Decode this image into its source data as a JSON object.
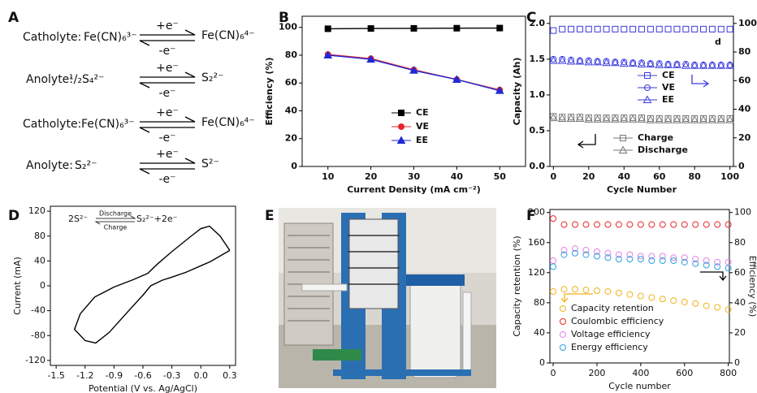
{
  "panel_labels": [
    "A",
    "B",
    "C",
    "D",
    "E",
    "F"
  ],
  "reactions": [
    {
      "label": "Catholyte:",
      "left": "Fe(CN)₆³⁻",
      "forward": "+e⁻",
      "backward": "-e⁻",
      "right": "Fe(CN)₆⁴⁻"
    },
    {
      "label": "Anolyte:",
      "left": "¹/₂S₄²⁻",
      "forward": "+e⁻",
      "backward": "-e⁻",
      "right": "S₂²⁻"
    },
    {
      "label": "Catholyte:",
      "left": "Fe(CN)₆³⁻",
      "forward": "+e⁻",
      "backward": "-e⁻",
      "right": "Fe(CN)₆⁴⁻"
    },
    {
      "label": "Anolyte:",
      "left": "S₂²⁻",
      "forward": "+e⁻",
      "backward": "-e⁻",
      "right": "S²⁻"
    }
  ],
  "chart_data": [
    {
      "type": "line",
      "xlabel": "Current Density (mA cm⁻²)",
      "ylabel": "Efficiency (%)",
      "x": [
        10,
        20,
        30,
        40,
        50
      ],
      "xlim": [
        4,
        56
      ],
      "xticks": [
        10,
        20,
        30,
        40,
        50
      ],
      "ylim": [
        0,
        108
      ],
      "yticks": [
        0,
        20,
        40,
        60,
        80,
        100
      ],
      "legend": "lower right",
      "series": [
        {
          "name": "CE",
          "color": "#000000",
          "marker": "square",
          "filled": true,
          "values": [
            99,
            99.2,
            99.3,
            99.4,
            99.5
          ]
        },
        {
          "name": "VE",
          "color": "#e8262b",
          "marker": "circle",
          "filled": true,
          "values": [
            80.5,
            77.5,
            69.5,
            62.5,
            55
          ]
        },
        {
          "name": "EE",
          "color": "#1f2ad6",
          "marker": "triangle",
          "filled": true,
          "values": [
            80,
            77,
            69,
            62.5,
            54.5
          ]
        }
      ]
    },
    {
      "type": "scatter",
      "xlabel": "Cycle Number",
      "ylabel": "Capacity (Ah)",
      "annotation": "d",
      "x": [
        0,
        5,
        10,
        15,
        20,
        25,
        30,
        35,
        40,
        45,
        50,
        55,
        60,
        65,
        70,
        75,
        80,
        85,
        90,
        95,
        100
      ],
      "xlim": [
        -2,
        102
      ],
      "xticks": [
        0,
        20,
        40,
        60,
        80,
        100
      ],
      "ylim": [
        0,
        2.1
      ],
      "yticks": [
        {
          "value": 0,
          "label": "0.0"
        },
        0.5,
        {
          "value": 1,
          "label": "1.0"
        },
        1.5,
        {
          "value": 2,
          "label": "2.0"
        }
      ],
      "y2lim": [
        0,
        105
      ],
      "y2ticks": [
        0,
        20,
        40,
        60,
        80,
        100
      ],
      "legend": "center",
      "series": [
        {
          "name": "CE",
          "color": "#3a3ae0",
          "marker": "square",
          "filled": false,
          "axis": "y2",
          "values": [
            95,
            96,
            96,
            96,
            96,
            96,
            96,
            96,
            96,
            96,
            96,
            96,
            96,
            96,
            96,
            96,
            96,
            96,
            96,
            96,
            96
          ]
        },
        {
          "name": "VE",
          "color": "#3a3ae0",
          "marker": "circle",
          "filled": false,
          "axis": "y2",
          "values": [
            75,
            75,
            74.5,
            74,
            74,
            73.5,
            73.5,
            73,
            73,
            72.5,
            72.5,
            72,
            72,
            71.5,
            71.5,
            71.5,
            71,
            71,
            71,
            71,
            71
          ]
        },
        {
          "name": "EE",
          "color": "#3a3ae0",
          "marker": "triangle",
          "filled": false,
          "axis": "y2",
          "values": [
            74,
            74,
            73.5,
            73.5,
            73,
            73,
            72.5,
            72.5,
            72,
            72,
            71.5,
            71.5,
            71,
            71,
            71,
            70.5,
            70.5,
            70.5,
            70.5,
            70.5,
            70.5
          ]
        },
        {
          "name": "Charge",
          "color": "#777777",
          "marker": "square",
          "filled": false,
          "values": [
            0.7,
            0.69,
            0.69,
            0.69,
            0.68,
            0.68,
            0.68,
            0.68,
            0.68,
            0.68,
            0.68,
            0.67,
            0.67,
            0.67,
            0.67,
            0.67,
            0.67,
            0.67,
            0.67,
            0.67,
            0.67
          ]
        },
        {
          "name": "Discharge",
          "color": "#777777",
          "marker": "triangle",
          "filled": false,
          "values": [
            0.68,
            0.67,
            0.67,
            0.67,
            0.66,
            0.66,
            0.66,
            0.66,
            0.66,
            0.66,
            0.66,
            0.65,
            0.65,
            0.65,
            0.65,
            0.65,
            0.65,
            0.65,
            0.65,
            0.65,
            0.65
          ]
        }
      ]
    },
    {
      "type": "line",
      "xlabel": "Potential (V vs. Ag/AgCl)",
      "ylabel": "Current (mA)",
      "annotation": {
        "left": "2S²⁻",
        "above": "Discharge",
        "below": "Charge",
        "right": "S₂²⁻+2e⁻"
      },
      "x": [
        0.3,
        0.2,
        0.09,
        0.0,
        -0.1,
        -0.3,
        -0.45,
        -0.55,
        -0.7,
        -0.9,
        -1.1,
        -1.25,
        -1.31,
        -1.2,
        -1.09,
        -0.95,
        -0.73,
        -0.6,
        -0.52,
        -0.4,
        -0.3,
        -0.15,
        0.1,
        0.3
      ],
      "xlim": [
        -1.56,
        0.36
      ],
      "xticks": [
        -1.5,
        -1.2,
        -0.9,
        -0.6,
        -0.3,
        {
          "value": 0,
          "label": "0.0"
        },
        0.3
      ],
      "ylim": [
        -128,
        128
      ],
      "yticks": [
        -120,
        -80,
        -40,
        0,
        40,
        80,
        120
      ],
      "series": [
        {
          "color": "#000000",
          "marker": "none",
          "values": [
            57,
            80,
            96,
            92,
            80,
            55,
            35,
            20,
            10,
            -2,
            -18,
            -45,
            -70,
            -88,
            -92,
            -75,
            -37,
            -15,
            0,
            9,
            14,
            22,
            39,
            57
          ]
        }
      ]
    },
    {
      "type": "scatter",
      "xlabel": "Cycle number",
      "ylabel": "Capacity retention (%)",
      "y2label": "Efficiency (%)",
      "x": [
        0,
        50,
        100,
        150,
        200,
        250,
        300,
        350,
        400,
        450,
        500,
        550,
        600,
        650,
        700,
        750,
        800
      ],
      "xlim": [
        -15,
        805
      ],
      "xticks": [
        0,
        200,
        400,
        600,
        800
      ],
      "ylim": [
        0,
        204
      ],
      "yticks": [
        0,
        40,
        80,
        120,
        160,
        200
      ],
      "y2lim": [
        0,
        102
      ],
      "y2ticks": [
        0,
        20,
        40,
        60,
        80,
        100
      ],
      "legend": "lower left",
      "series": [
        {
          "name": "Capacity retention",
          "color": "#f2b21b",
          "marker": "circle",
          "filled": false,
          "values": [
            95,
            98,
            98,
            97,
            96,
            95,
            93,
            91,
            89,
            87,
            85,
            83,
            81,
            79,
            76,
            74,
            71
          ]
        },
        {
          "name": "Coulombic efficiency",
          "color": "#e8262b",
          "marker": "circle",
          "filled": false,
          "axis": "y2",
          "values": [
            96,
            92,
            92,
            92,
            92,
            92,
            92,
            92,
            92,
            92,
            92,
            92,
            92,
            92,
            92,
            92,
            92
          ]
        },
        {
          "name": "Voltage efficiency",
          "color": "#e680e6",
          "marker": "circle",
          "filled": false,
          "axis": "y2",
          "values": [
            68,
            75,
            76,
            75,
            74,
            73,
            72,
            72,
            71,
            71,
            71,
            70,
            70,
            69,
            68,
            67,
            67
          ]
        },
        {
          "name": "Energy efficiency",
          "color": "#2aa0e0",
          "marker": "circle",
          "filled": false,
          "axis": "y2",
          "values": [
            64,
            72,
            73,
            72,
            71,
            70,
            69,
            69,
            69,
            68,
            68,
            68,
            67,
            66,
            65,
            64,
            63
          ]
        }
      ]
    }
  ]
}
